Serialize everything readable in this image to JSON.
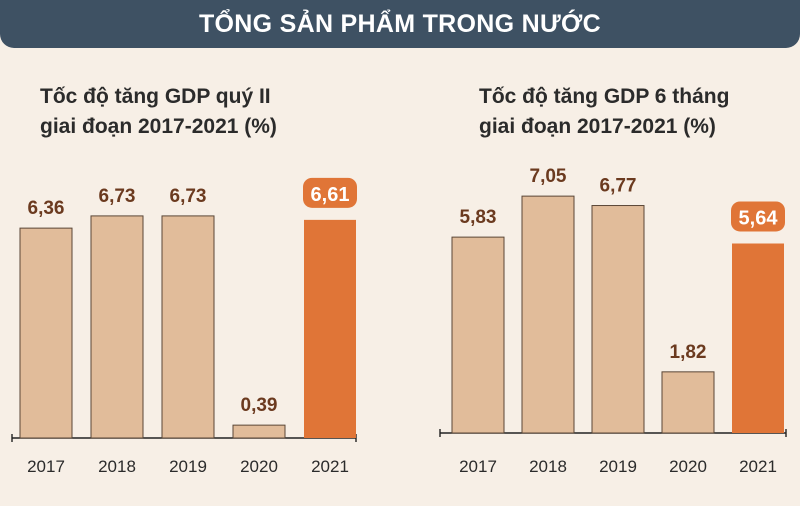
{
  "banner": {
    "title": "TỔNG SẢN PHẨM TRONG NƯỚC"
  },
  "colors": {
    "banner": "#3e5163",
    "bar": "#e1bc9a",
    "bar_stroke": "#5a4636",
    "highlight": "#e07537",
    "label": "#6b3a1f",
    "background": "#f7efe6"
  },
  "chart_data": [
    {
      "type": "bar",
      "title_lines": [
        "Tốc độ tăng GDP quý II",
        "giai đoạn 2017-2021 (%)"
      ],
      "categories": [
        "2017",
        "2018",
        "2019",
        "2020",
        "2021"
      ],
      "values": [
        6.36,
        6.73,
        6.73,
        0.39,
        6.61
      ],
      "labels": [
        "6,36",
        "6,73",
        "6,73",
        "0,39",
        "6,61"
      ],
      "highlight_index": 4,
      "ylim": [
        0,
        8
      ]
    },
    {
      "type": "bar",
      "title_lines": [
        "Tốc độ tăng GDP 6 tháng",
        "giai đoạn 2017-2021 (%)"
      ],
      "categories": [
        "2017",
        "2018",
        "2019",
        "2020",
        "2021"
      ],
      "values": [
        5.83,
        7.05,
        6.77,
        1.82,
        5.64
      ],
      "labels": [
        "5,83",
        "7,05",
        "6,77",
        "1,82",
        "5,64"
      ],
      "highlight_index": 4,
      "ylim": [
        0,
        8
      ]
    }
  ]
}
